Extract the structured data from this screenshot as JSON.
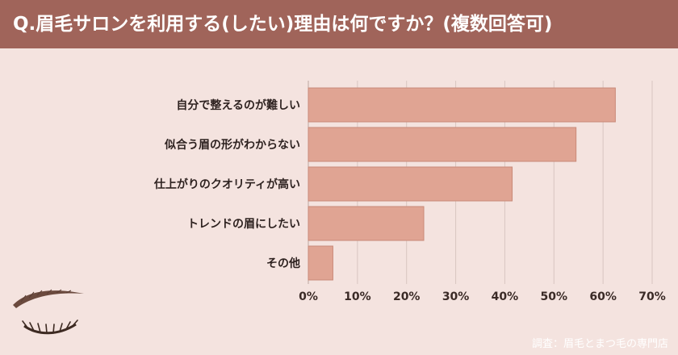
{
  "header": {
    "title": "Q.眉毛サロンを利用する(したい)理由は何ですか？(複数回答可)"
  },
  "source": "調査：眉毛とまつ毛の専門店",
  "colors": {
    "header": "#a0645a",
    "background": "#f4e3df",
    "bar": "#e0a493",
    "bar_border": "#c98a78",
    "grid": "#d9c6c1"
  },
  "chart_data": {
    "type": "bar",
    "orientation": "horizontal",
    "title": "Q.眉毛サロンを利用する(したい)理由は何ですか？(複数回答可)",
    "categories": [
      "自分で整えるのが難しい",
      "似合う眉の形がわからない",
      "仕上がりのクオリティが高い",
      "トレンドの眉にしたい",
      "その他"
    ],
    "values": [
      62.5,
      54.5,
      41.5,
      23.5,
      5
    ],
    "xlim": [
      0,
      70
    ],
    "xticks": [
      0,
      10,
      20,
      30,
      40,
      50,
      60,
      70
    ],
    "xtick_labels": [
      "0%",
      "10%",
      "20%",
      "30%",
      "40%",
      "50%",
      "60%",
      "70%"
    ],
    "xlabel": "",
    "ylabel": "",
    "grid": true,
    "legend": "none"
  }
}
